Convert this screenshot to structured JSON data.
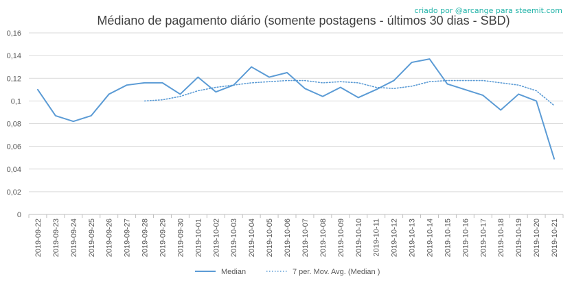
{
  "chart_data": {
    "type": "line",
    "title": "Médiano de pagamento diário (somente postagens - últimos 30 dias - SBD)",
    "annotation": "criado por @arcange para steemit.com",
    "xlabel": "",
    "ylabel": "",
    "ylim": [
      0,
      0.16
    ],
    "yticks": [
      "0",
      "0,02",
      "0,04",
      "0,06",
      "0,08",
      "0,1",
      "0,12",
      "0,14",
      "0,16"
    ],
    "grid": true,
    "legend_position": "bottom",
    "line_color": "#5b9bd5",
    "categories": [
      "2019-09-22",
      "2019-09-23",
      "2019-09-24",
      "2019-09-25",
      "2019-09-26",
      "2019-09-27",
      "2019-09-28",
      "2019-09-29",
      "2019-09-30",
      "2019-10-01",
      "2019-10-02",
      "2019-10-03",
      "2019-10-04",
      "2019-10-05",
      "2019-10-06",
      "2019-10-07",
      "2019-10-08",
      "2019-10-09",
      "2019-10-10",
      "2019-10-11",
      "2019-10-12",
      "2019-10-13",
      "2019-10-14",
      "2019-10-15",
      "2019-10-16",
      "2019-10-17",
      "2019-10-18",
      "2019-10-19",
      "2019-10-20",
      "2019-10-21"
    ],
    "series": [
      {
        "name": "Median",
        "style": "solid",
        "values": [
          0.11,
          0.087,
          0.082,
          0.087,
          0.106,
          0.114,
          0.116,
          0.116,
          0.106,
          0.121,
          0.108,
          0.114,
          0.13,
          0.121,
          0.125,
          0.111,
          0.104,
          0.112,
          0.103,
          0.11,
          0.118,
          0.134,
          0.137,
          0.115,
          0.11,
          0.105,
          0.092,
          0.106,
          0.1,
          0.049
        ]
      },
      {
        "name": "7 per. Mov. Avg. (Median )",
        "style": "dotted",
        "values": [
          null,
          null,
          null,
          null,
          null,
          null,
          0.1,
          0.101,
          0.104,
          0.109,
          0.112,
          0.114,
          0.116,
          0.117,
          0.118,
          0.118,
          0.116,
          0.117,
          0.116,
          0.112,
          0.111,
          0.113,
          0.117,
          0.118,
          0.118,
          0.118,
          0.116,
          0.114,
          0.109,
          0.096
        ]
      }
    ]
  }
}
